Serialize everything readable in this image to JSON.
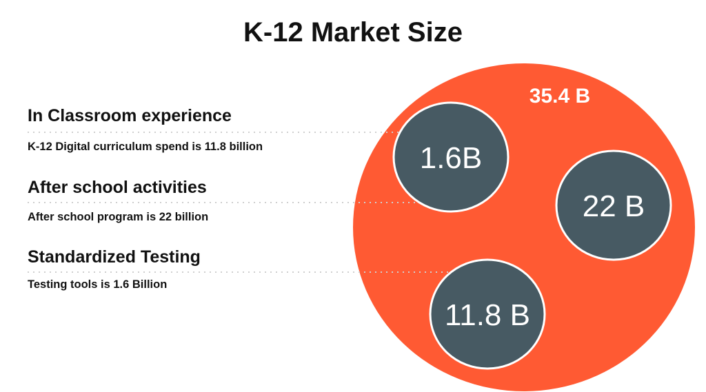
{
  "title": "K-12 Market Size",
  "colors": {
    "outer": "#FF5A33",
    "inner": "#475A63",
    "inner_stroke": "#ffffff"
  },
  "outer_circle": {
    "label": "35.4 B",
    "value_billion": 35.4
  },
  "inner_circles": [
    {
      "label": "1.6B",
      "value_billion": 1.6
    },
    {
      "label": "22 B",
      "value_billion": 22
    },
    {
      "label": "11.8 B",
      "value_billion": 11.8
    }
  ],
  "sections": [
    {
      "heading": "In Classroom experience",
      "detail": "K-12 Digital curriculum spend is 11.8 billion"
    },
    {
      "heading": "After school activities",
      "detail": "After school program is 22 billion"
    },
    {
      "heading": "Standardized Testing",
      "detail": "Testing tools is 1.6 Billion"
    }
  ]
}
